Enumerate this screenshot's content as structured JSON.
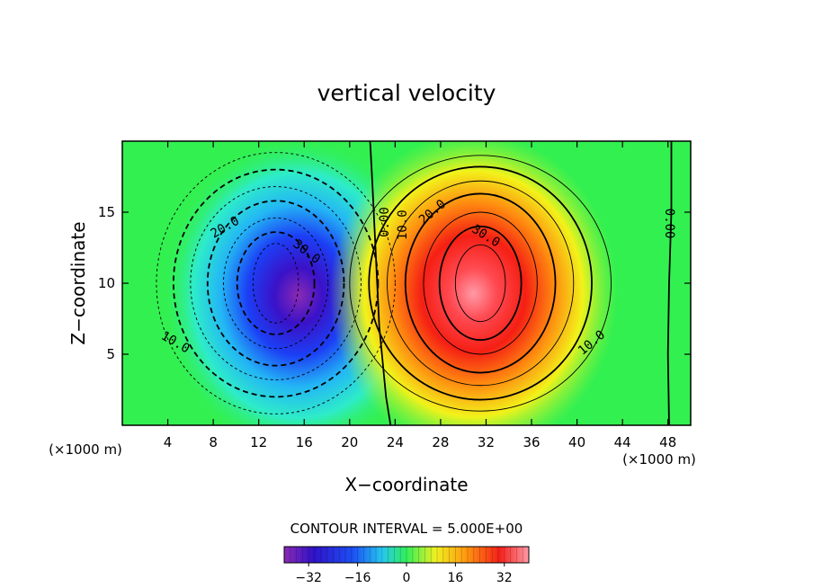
{
  "chart_data": {
    "type": "heatmap",
    "title": "vertical velocity",
    "xlabel": "X−coordinate",
    "ylabel": "Z−coordinate",
    "x_unit": "(×1000 m)",
    "xlim": [
      0,
      50
    ],
    "ylim": [
      0,
      20
    ],
    "x_ticks": [
      4,
      8,
      12,
      16,
      20,
      24,
      28,
      32,
      36,
      40,
      44,
      48
    ],
    "y_ticks": [
      5,
      10,
      15
    ],
    "contour_interval_label": "CONTOUR INTERVAL = 5.000E+00",
    "contour_labels": [
      "20.0",
      "10.0",
      "30.0",
      "0.00",
      "10.0",
      "20.0",
      "30.0",
      "10.0",
      "10.0",
      "0.00"
    ],
    "colorbar": {
      "min": -40,
      "max": 40,
      "ticks": [
        -32,
        -16,
        0,
        16,
        32
      ],
      "tick_labels": [
        "−32",
        "−16",
        "0",
        "16",
        "32"
      ]
    },
    "features": [
      {
        "kind": "downdraft",
        "center": [
          15.5,
          8.5
        ],
        "peak": -38
      },
      {
        "kind": "updraft",
        "center": [
          30.5,
          8.5
        ],
        "peak": 38
      }
    ]
  }
}
